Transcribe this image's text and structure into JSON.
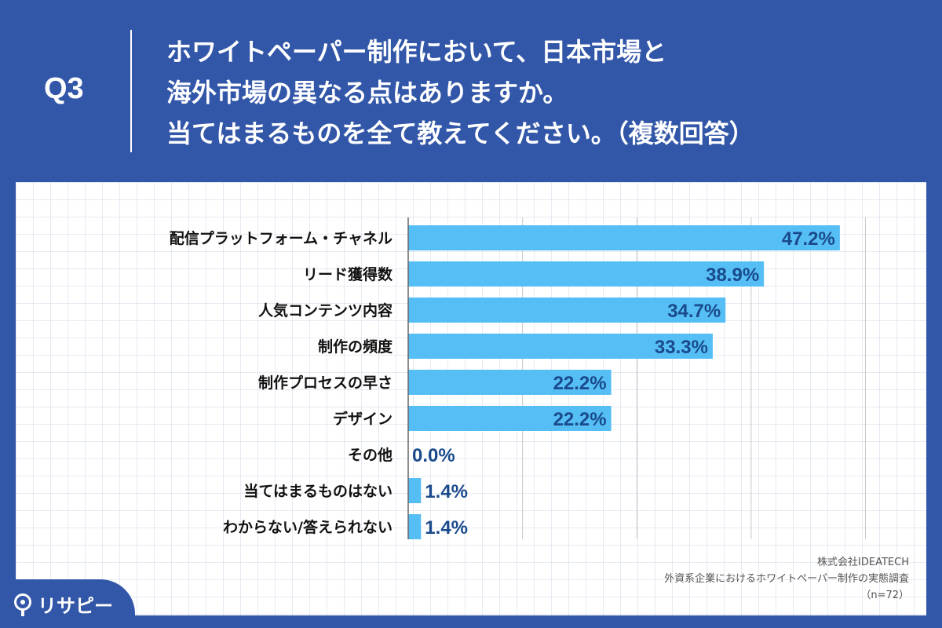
{
  "header": {
    "q_label": "Q3",
    "question_lines": [
      "ホワイトペーパー制作において、日本市場と",
      "海外市場の異なる点はありますか。",
      "当てはまるものを全て教えてください。（複数回答）"
    ]
  },
  "chart_data": {
    "type": "bar",
    "orientation": "horizontal",
    "categories": [
      "配信プラットフォーム・チャネル",
      "リード獲得数",
      "人気コンテンツ内容",
      "制作の頻度",
      "制作プロセスの早さ",
      "デザイン",
      "その他",
      "当てはまるものはない",
      "わからない/答えられない"
    ],
    "values": [
      47.2,
      38.9,
      34.7,
      33.3,
      22.2,
      22.2,
      0.0,
      1.4,
      1.4
    ],
    "data_labels": [
      "47.2%",
      "38.9%",
      "34.7%",
      "33.3%",
      "22.2%",
      "22.2%",
      "0.0%",
      "1.4%",
      "1.4%"
    ],
    "xlim": [
      0,
      50
    ],
    "bar_color": "#55bff5",
    "label_color": "#1a4a8c",
    "grid": true
  },
  "source": {
    "company": "株式会社IDEATECH",
    "survey": "外資系企業におけるホワイトペーパー制作の実態調査",
    "sample": "（n=72）"
  },
  "brand": {
    "name": "リサピー",
    "icon": "pin-icon"
  },
  "colors": {
    "background": "#3357a8",
    "panel": "#ffffff",
    "bar": "#55bff5",
    "value_text": "#1a4a8c"
  }
}
